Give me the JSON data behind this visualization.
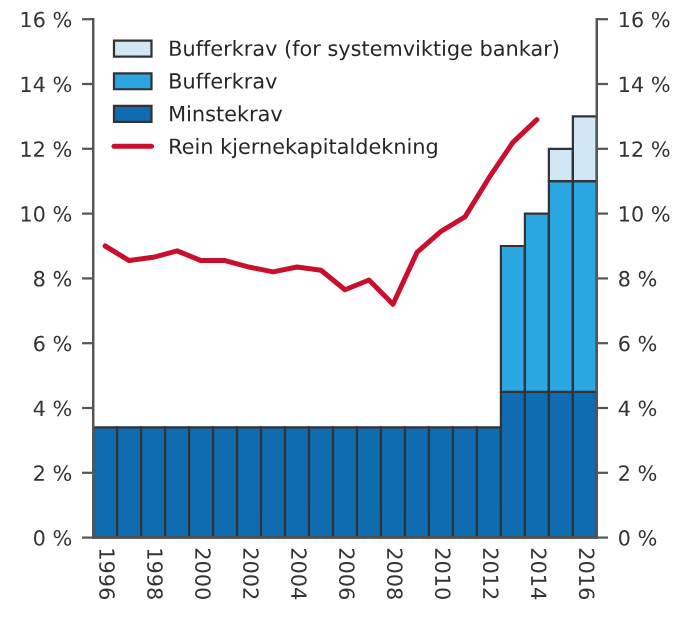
{
  "chart_data": {
    "type": "bar",
    "stacked": true,
    "categories": [
      "1996",
      null,
      "1998",
      null,
      "2000",
      null,
      "2002",
      null,
      "2004",
      null,
      "2006",
      null,
      "2008",
      null,
      "2010",
      null,
      "2012",
      null,
      "2014",
      null,
      "2016"
    ],
    "series": [
      {
        "name": "Minstekrav",
        "color": "#0f6cb0",
        "values": [
          3.4,
          3.4,
          3.4,
          3.4,
          3.4,
          3.4,
          3.4,
          3.4,
          3.4,
          3.4,
          3.4,
          3.4,
          3.4,
          3.4,
          3.4,
          3.4,
          3.4,
          4.5,
          4.5,
          4.5,
          4.5
        ]
      },
      {
        "name": "Bufferkrav",
        "color": "#2aa7e0",
        "values": [
          null,
          null,
          null,
          null,
          null,
          null,
          null,
          null,
          null,
          null,
          null,
          null,
          null,
          null,
          null,
          null,
          null,
          4.5,
          5.5,
          6.5,
          6.5
        ]
      },
      {
        "name": "Bufferkrav (for systemviktige bankar)",
        "color": "#d2e7f6",
        "values": [
          null,
          null,
          null,
          null,
          null,
          null,
          null,
          null,
          null,
          null,
          null,
          null,
          null,
          null,
          null,
          null,
          null,
          null,
          null,
          1,
          2
        ]
      },
      {
        "name": "Rein kjernekapitaldekning",
        "type": "line",
        "color": "#c8102e",
        "values": [
          9.0,
          8.55,
          8.65,
          8.85,
          8.55,
          8.55,
          8.35,
          8.2,
          8.35,
          8.25,
          7.65,
          7.95,
          7.2,
          8.8,
          9.45,
          9.9,
          11.1,
          12.2,
          12.9,
          null,
          null
        ]
      }
    ],
    "ylim": [
      0,
      16
    ],
    "yticks": [
      {
        "value": 0,
        "label": "0 %"
      },
      {
        "value": 2,
        "label": "2 %"
      },
      {
        "value": 4,
        "label": "4 %"
      },
      {
        "value": 6,
        "label": "6 %"
      },
      {
        "value": 8,
        "label": "8 %"
      },
      {
        "value": 10,
        "label": "10 %"
      },
      {
        "value": 12,
        "label": "12 %"
      },
      {
        "value": 14,
        "label": "14 %"
      },
      {
        "value": 16,
        "label": "16 %"
      }
    ],
    "y2lim": [
      0,
      16
    ],
    "y2ticks": [
      {
        "value": 0,
        "label": "0 %"
      },
      {
        "value": 2,
        "label": "2 %"
      },
      {
        "value": 4,
        "label": "4 %"
      },
      {
        "value": 6,
        "label": "6 %"
      },
      {
        "value": 8,
        "label": "8 %"
      },
      {
        "value": 10,
        "label": "10 %"
      },
      {
        "value": 12,
        "label": "12 %"
      },
      {
        "value": 14,
        "label": "14 %"
      },
      {
        "value": 16,
        "label": "16 %"
      }
    ],
    "legend": "top left",
    "grid": false
  }
}
